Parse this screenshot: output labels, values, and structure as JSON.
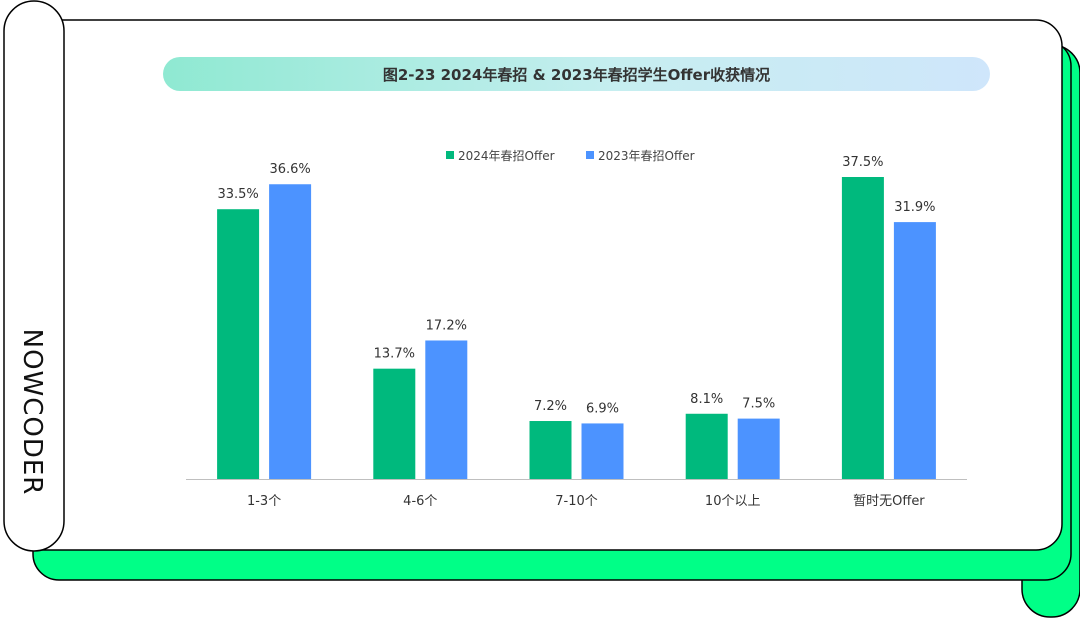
{
  "brand": {
    "name": "NOWCODER"
  },
  "colors": {
    "accent_green": "#00ff87",
    "series_2024": "#00b97d",
    "series_2023": "#4c93ff"
  },
  "chart_data": {
    "type": "bar",
    "title": "图2-23 2024年春招 & 2023年春招学生Offer收获情况",
    "categories": [
      "1-3个",
      "4-6个",
      "7-10个",
      "10个以上",
      "暂时无Offer"
    ],
    "series": [
      {
        "name": "2024年春招Offer",
        "values": [
          33.5,
          13.7,
          7.2,
          8.1,
          37.5
        ],
        "labels": [
          "33.5%",
          "13.7%",
          "7.2%",
          "8.1%",
          "37.5%"
        ]
      },
      {
        "name": "2023年春招Offer",
        "values": [
          36.6,
          17.2,
          6.9,
          7.5,
          31.9
        ],
        "labels": [
          "36.6%",
          "17.2%",
          "6.9%",
          "7.5%",
          "31.9%"
        ]
      }
    ],
    "ylim": [
      0,
      37.5
    ],
    "grid": false,
    "legend": "top-center"
  }
}
